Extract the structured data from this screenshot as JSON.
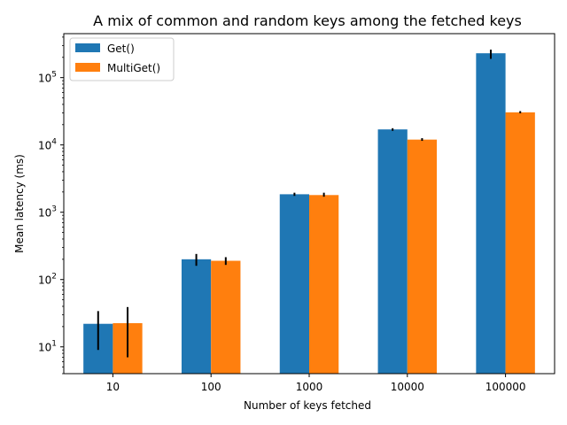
{
  "chart_data": {
    "type": "bar",
    "title": "A mix of common and random keys among the fetched keys",
    "xlabel": "Number of keys fetched",
    "ylabel": "Mean latency (ms)",
    "yscale": "log",
    "ylim": [
      4,
      450000
    ],
    "categories": [
      "10",
      "100",
      "1000",
      "10000",
      "100000"
    ],
    "yticks": [
      {
        "value": 10,
        "base": "10",
        "exp": "1"
      },
      {
        "value": 100,
        "base": "10",
        "exp": "2"
      },
      {
        "value": 1000,
        "base": "10",
        "exp": "3"
      },
      {
        "value": 10000,
        "base": "10",
        "exp": "4"
      },
      {
        "value": 100000,
        "base": "10",
        "exp": "5"
      }
    ],
    "legend_position": "top-left",
    "grid": false,
    "series": [
      {
        "name": "Get()",
        "color": "#1f77b4",
        "values": [
          22,
          200,
          1850,
          17000,
          230000
        ],
        "err_low": [
          9,
          160,
          1750,
          16200,
          190000
        ],
        "err_high": [
          34,
          240,
          1950,
          17700,
          260000
        ]
      },
      {
        "name": "MultiGet()",
        "color": "#ff7f0e",
        "values": [
          22.5,
          190,
          1800,
          12000,
          30500
        ],
        "err_low": [
          7,
          165,
          1700,
          11500,
          29500
        ],
        "err_high": [
          39,
          215,
          1950,
          12600,
          31800
        ]
      }
    ]
  }
}
